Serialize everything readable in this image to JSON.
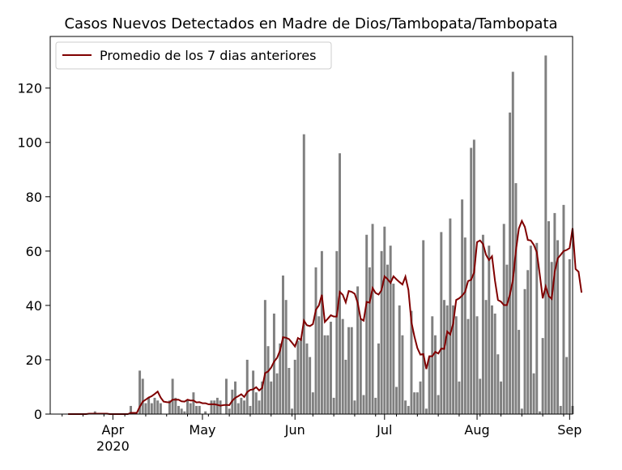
{
  "chart_data": {
    "type": "bar",
    "title": "Casos Nuevos Detectados en Madre de Dios/Tambopata/Tambopata",
    "xlabel": "",
    "ylabel": "",
    "x_start_date": "2020-03-17",
    "x_range": [
      "2020-03-11",
      "2020-09-02"
    ],
    "ylim": [
      0,
      139
    ],
    "y_ticks": [
      0,
      20,
      40,
      60,
      80,
      100,
      120
    ],
    "x_ticks": [
      {
        "date": "2020-04-01",
        "label": "Apr",
        "sublabel": "2020"
      },
      {
        "date": "2020-05-01",
        "label": "May",
        "sublabel": ""
      },
      {
        "date": "2020-06-01",
        "label": "Jun",
        "sublabel": ""
      },
      {
        "date": "2020-07-01",
        "label": "Jul",
        "sublabel": ""
      },
      {
        "date": "2020-08-01",
        "label": "Aug",
        "sublabel": ""
      },
      {
        "date": "2020-09-01",
        "label": "Sep",
        "sublabel": ""
      }
    ],
    "legend": {
      "position": "top-left",
      "label": "Promedio de los 7 dias anteriores"
    },
    "bar_color": "#808080",
    "line_color": "#800000",
    "daily_cases": [
      0,
      0,
      0,
      0,
      0,
      0,
      0,
      0,
      0,
      1,
      0,
      0,
      0,
      0,
      0,
      0,
      0,
      0,
      0,
      0,
      0,
      3,
      0,
      0,
      16,
      13,
      4,
      6,
      4,
      6,
      5,
      4,
      0,
      0,
      5,
      13,
      6,
      3,
      2,
      1,
      5,
      4,
      8,
      3,
      3,
      0,
      1,
      0,
      5,
      5,
      6,
      5,
      0,
      13,
      2,
      9,
      12,
      4,
      6,
      5,
      20,
      3,
      16,
      8,
      5,
      12,
      42,
      25,
      12,
      37,
      15,
      26,
      51,
      42,
      17,
      2,
      20,
      27,
      28,
      103,
      26,
      21,
      8,
      54,
      36,
      60,
      29,
      29,
      34,
      6,
      60,
      96,
      35,
      20,
      32,
      32,
      5,
      47,
      35,
      7,
      66,
      54,
      70,
      6,
      26,
      60,
      69,
      55,
      62,
      48,
      10,
      40,
      29,
      5,
      3,
      38,
      8,
      8,
      12,
      64,
      2,
      21,
      36,
      29,
      7,
      67,
      42,
      40,
      72,
      40,
      36,
      12,
      79,
      65,
      35,
      98,
      101,
      36,
      13,
      66,
      42,
      62,
      40,
      37,
      22,
      12,
      70,
      55,
      111,
      126,
      85,
      31,
      2,
      46,
      53,
      62,
      15,
      63,
      1,
      28,
      132,
      71,
      56,
      74,
      64,
      3,
      77,
      21,
      57,
      3
    ],
    "rolling_avg_7d": [
      0,
      0,
      0,
      0,
      0,
      0,
      0,
      0.14,
      0.14,
      0.14,
      0.14,
      0.14,
      0.14,
      0.14,
      0,
      0,
      0,
      0,
      0,
      0,
      0,
      0.43,
      0.43,
      0.43,
      2.7,
      4.6,
      5.3,
      6.1,
      6.6,
      7.4,
      8.3,
      6.1,
      4.6,
      4.4,
      4.3,
      5.3,
      5.3,
      5.3,
      4.7,
      4.6,
      5.3,
      5.0,
      5.0,
      4.3,
      4.4,
      4.0,
      4.0,
      3.6,
      3.6,
      3.6,
      3.4,
      3.1,
      3.3,
      3.4,
      3.3,
      4.9,
      6.0,
      6.6,
      7.3,
      6.3,
      8.1,
      8.9,
      9.1,
      9.9,
      8.7,
      9.6,
      15.1,
      15.7,
      17.1,
      19.3,
      20.7,
      23.4,
      28.3,
      28.1,
      27.6,
      26.3,
      24.9,
      28.0,
      27.3,
      34.4,
      32.7,
      32.4,
      33.1,
      38.4,
      40.0,
      43.9,
      33.9,
      35.1,
      36.4,
      35.9,
      35.9,
      45.0,
      43.9,
      41.1,
      45.3,
      45.0,
      44.3,
      41.0,
      35.1,
      34.4,
      41.3,
      41.0,
      46.4,
      44.6,
      44.0,
      45.6,
      50.7,
      49.7,
      48.3,
      50.7,
      49.6,
      48.6,
      47.7,
      50.6,
      45.7,
      33.9,
      28.6,
      24.3,
      21.9,
      22.1,
      16.6,
      21.3,
      21.3,
      22.9,
      22.3,
      24.1,
      24.0,
      30.4,
      29.3,
      33.3,
      42.0,
      42.6,
      43.6,
      45.0,
      49.0,
      49.4,
      52.1,
      63.3,
      63.9,
      62.6,
      58.6,
      56.7,
      58.1,
      49.1,
      42.0,
      41.4,
      40.1,
      40.1,
      44.0,
      49.3,
      60.1,
      68.3,
      71.1,
      68.9,
      64.1,
      63.9,
      62.3,
      59.6,
      51.4,
      42.6,
      47.0,
      43.4,
      42.4,
      52.3,
      57.3,
      58.6,
      60.0,
      60.4,
      61.1,
      68.4,
      53.4,
      52.4,
      44.7
    ]
  }
}
